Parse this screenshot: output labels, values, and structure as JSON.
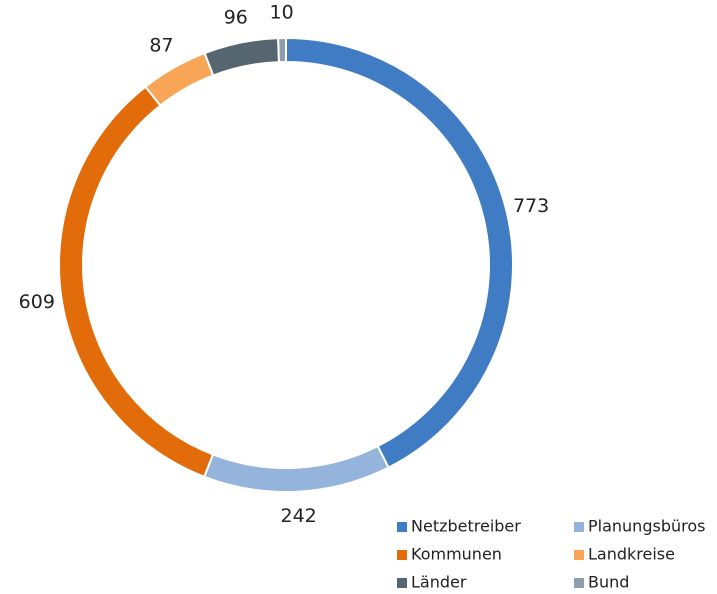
{
  "chart_data": {
    "type": "donut",
    "categories": [
      "Netzbetreiber",
      "Planungsbüros",
      "Kommunen",
      "Landkreise",
      "Länder",
      "Bund"
    ],
    "values": [
      773,
      242,
      609,
      87,
      96,
      10
    ],
    "colors": [
      "#3f7cc4",
      "#94b4dc",
      "#e36c0a",
      "#f8a557",
      "#566670",
      "#8e9eae"
    ],
    "legend": "bottom-right"
  }
}
